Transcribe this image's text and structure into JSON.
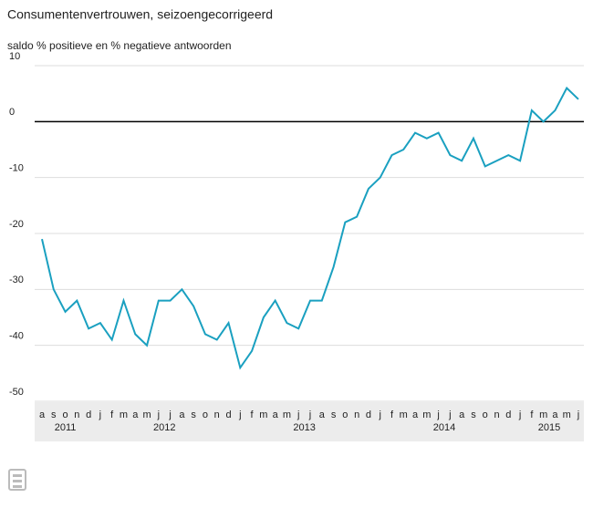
{
  "chart_data": {
    "type": "line",
    "title": "Consumentenvertrouwen, seizoengecorrigeerd",
    "subtitle": "saldo % positieve en % negatieve antwoorden",
    "categories": [
      "a",
      "s",
      "o",
      "n",
      "d",
      "j",
      "f",
      "m",
      "a",
      "m",
      "j",
      "j",
      "a",
      "s",
      "o",
      "n",
      "d",
      "j",
      "f",
      "m",
      "a",
      "m",
      "j",
      "j",
      "a",
      "s",
      "o",
      "n",
      "d",
      "j",
      "f",
      "m",
      "a",
      "m",
      "j",
      "j",
      "a",
      "s",
      "o",
      "n",
      "d",
      "j",
      "f",
      "m",
      "a",
      "m",
      "j"
    ],
    "years": [
      "2011",
      "2012",
      "2013",
      "2014",
      "2015"
    ],
    "series": [
      {
        "color": "#1aa0c0",
        "values": [
          -21,
          -30,
          -34,
          -32,
          -37,
          -36,
          -39,
          -32,
          -38,
          -40,
          -32,
          -32,
          -30,
          -33,
          -38,
          -39,
          -36,
          -44,
          -41,
          -35,
          -32,
          -36,
          -37,
          -32,
          -32,
          -26,
          -18,
          -17,
          -12,
          -10,
          -6,
          -5,
          -2,
          -3,
          -2,
          -6,
          -7,
          -3,
          -8,
          -7,
          -6,
          -7,
          2,
          0,
          2,
          6,
          4
        ]
      }
    ],
    "ylim": [
      -50,
      10
    ],
    "yticks": [
      -50,
      -40,
      -30,
      -20,
      -10,
      0,
      10
    ],
    "grid": true
  }
}
